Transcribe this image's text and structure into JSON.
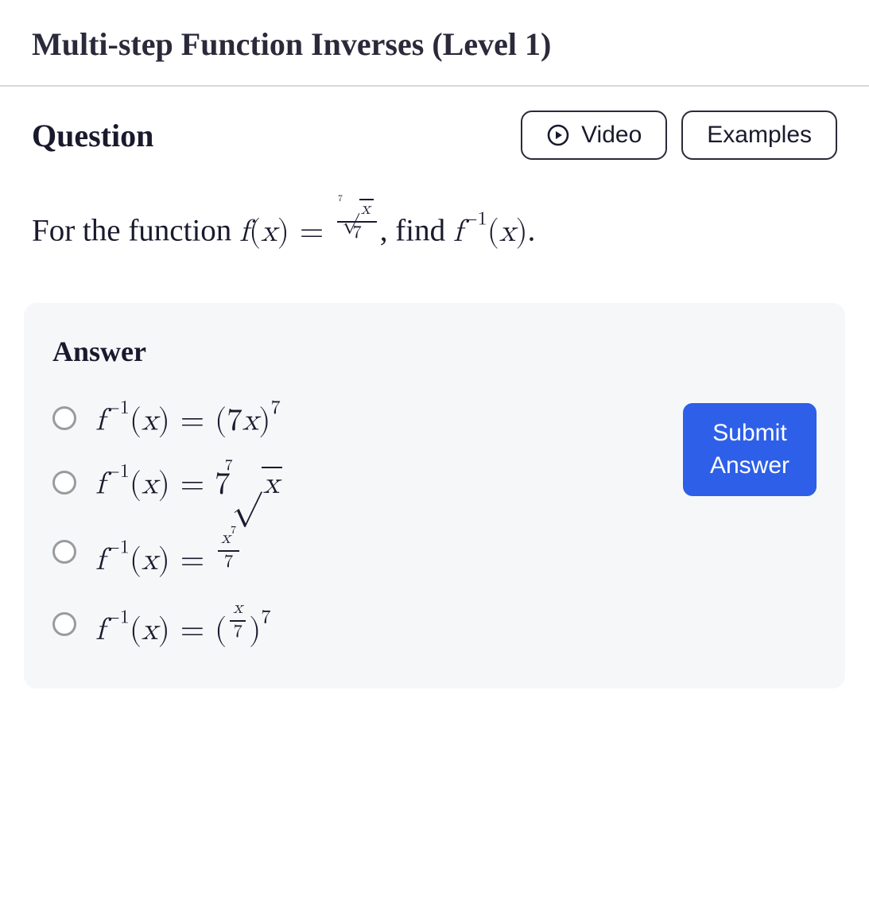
{
  "header": {
    "title": "Multi-step Function Inverses (Level 1)"
  },
  "toolbar": {
    "question_label": "Question",
    "video_label": "Video",
    "examples_label": "Examples"
  },
  "problem": {
    "prefix": "For the function ",
    "mid": ", find ",
    "suffix": "."
  },
  "answer": {
    "label": "Answer",
    "submit_label": "Submit Answer",
    "options": [
      {
        "id": "opt-a"
      },
      {
        "id": "opt-b"
      },
      {
        "id": "opt-c"
      },
      {
        "id": "opt-d"
      }
    ]
  },
  "style": {
    "colors": {
      "text": "#1a1a2e",
      "divider": "#d8d8dc",
      "answer_bg": "#f6f7f9",
      "radio_border": "#9a9aa0",
      "submit_bg": "#2e5fe8",
      "submit_text": "#ffffff",
      "button_border": "#2a2a3a"
    },
    "fontsize": {
      "title": 40,
      "question_label": 40,
      "body": 39,
      "button": 30,
      "answer_label": 36
    }
  }
}
